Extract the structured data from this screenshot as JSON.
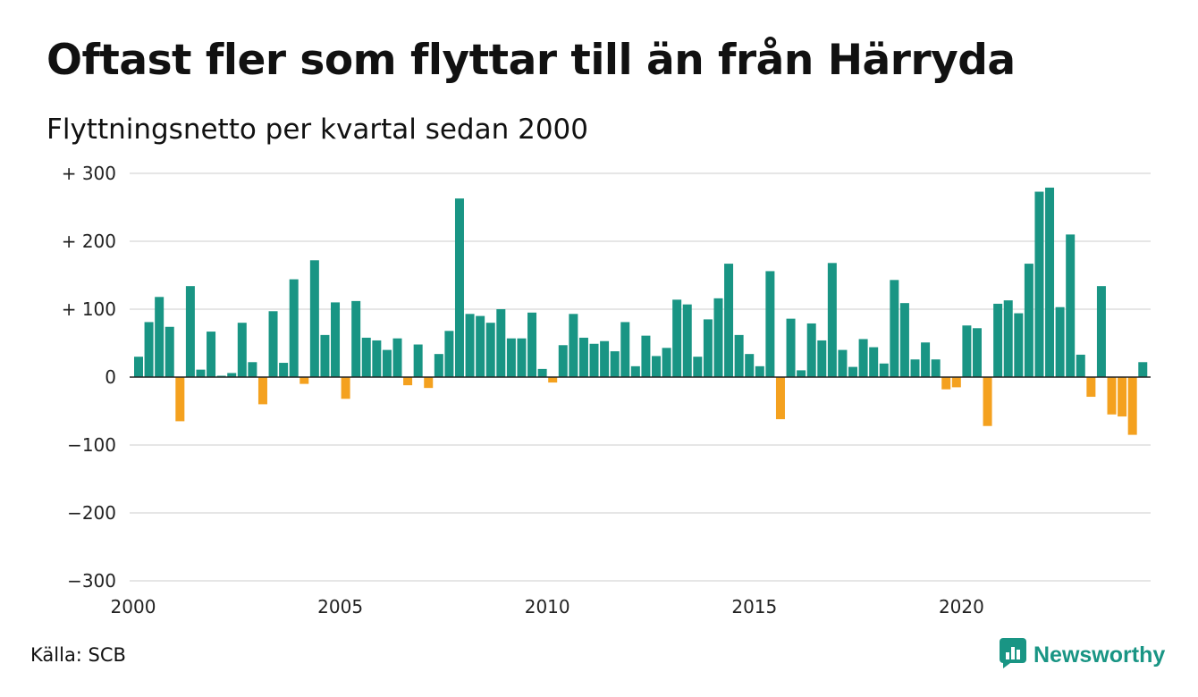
{
  "title": "Oftast fler som flyttar till än från Härryda",
  "subtitle": "Flyttningsnetto per kvartal sedan 2000",
  "source": "Källa: SCB",
  "brand": {
    "label": "Newsworthy",
    "icon": "newsworthy-chart-logo-icon"
  },
  "colors": {
    "positive": "#199584",
    "negative": "#f4a11f",
    "grid": "#dddddd",
    "zero": "#222222"
  },
  "chart_data": {
    "type": "bar",
    "title": "Oftast fler som flyttar till än från Härryda",
    "subtitle": "Flyttningsnetto per kvartal sedan 2000",
    "x_start": "2000-Q1",
    "period": "quarter",
    "ylim": [
      -300,
      300
    ],
    "y_ticks": [
      300,
      200,
      100,
      0,
      -100,
      -200,
      -300
    ],
    "y_tick_labels": [
      "+ 300",
      "+ 200",
      "+ 100",
      "0",
      "−100",
      "−200",
      "−300"
    ],
    "x_ticks": [
      2000,
      2005,
      2010,
      2015,
      2020
    ],
    "x_tick_labels": [
      "2000",
      "2005",
      "2010",
      "2015",
      "2020"
    ],
    "grid": true,
    "values": [
      30,
      81,
      118,
      74,
      -65,
      134,
      11,
      67,
      2,
      6,
      80,
      22,
      -40,
      97,
      21,
      144,
      -10,
      172,
      62,
      110,
      -32,
      112,
      58,
      54,
      40,
      57,
      -12,
      48,
      -16,
      34,
      68,
      263,
      93,
      90,
      80,
      100,
      57,
      57,
      95,
      12,
      -8,
      47,
      93,
      58,
      49,
      53,
      38,
      81,
      16,
      61,
      31,
      43,
      114,
      107,
      30,
      85,
      116,
      167,
      62,
      34,
      16,
      156,
      -62,
      86,
      10,
      79,
      54,
      168,
      40,
      15,
      56,
      44,
      20,
      143,
      109,
      26,
      51,
      26,
      -18,
      -15,
      76,
      72,
      -72,
      108,
      113,
      94,
      167,
      273,
      279,
      103,
      210,
      33,
      -29,
      134,
      -55,
      -58,
      -85,
      22
    ]
  }
}
